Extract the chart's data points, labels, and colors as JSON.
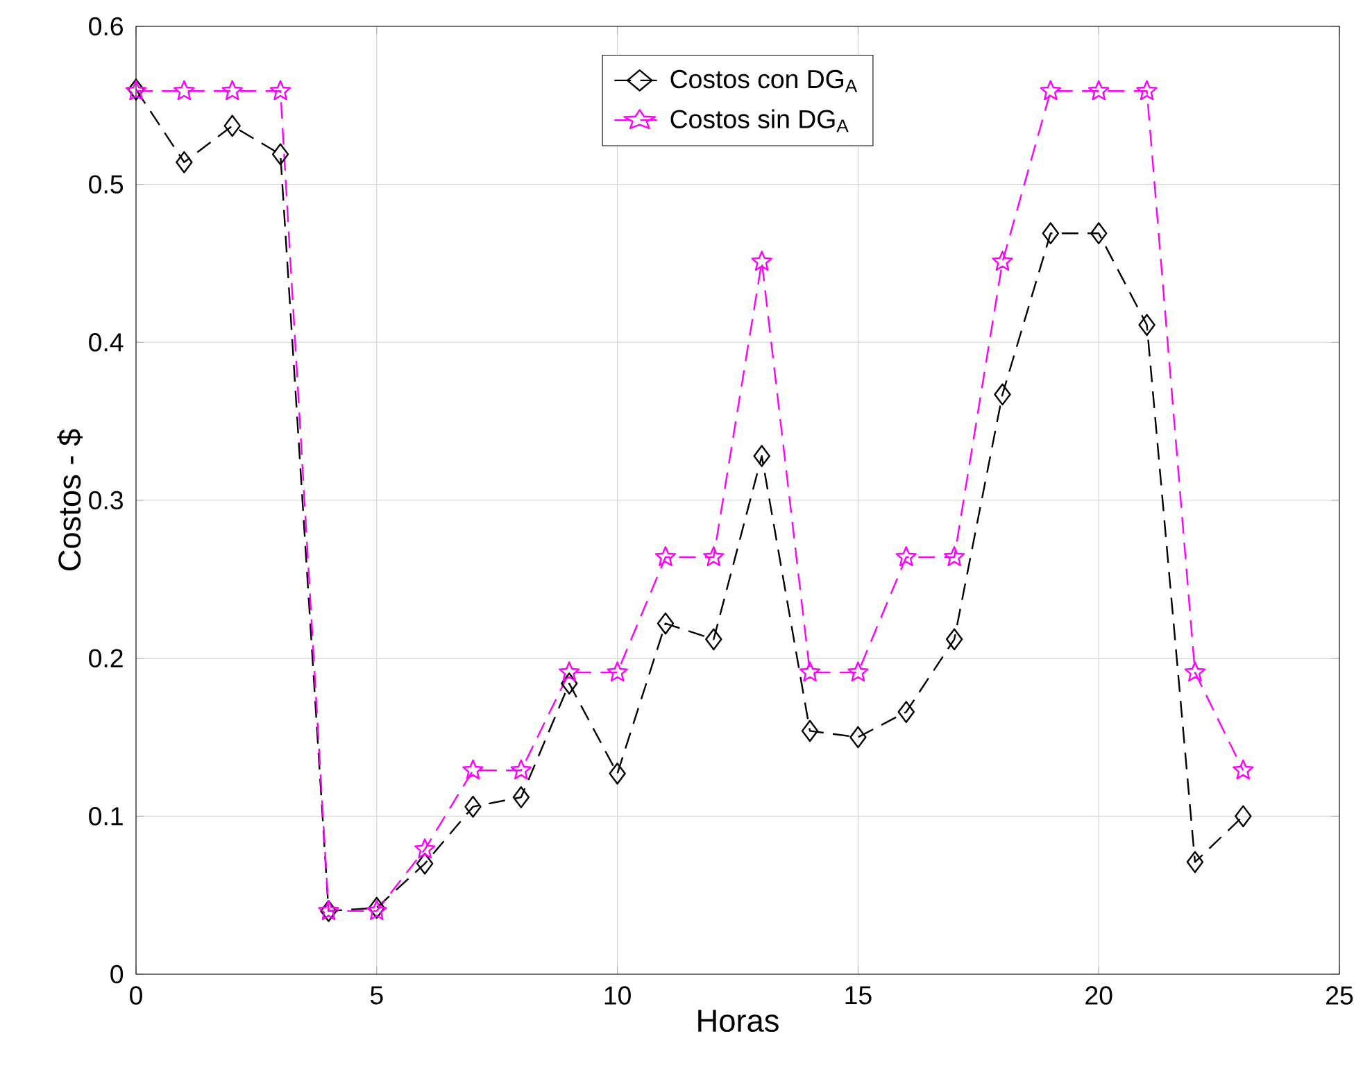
{
  "chart_data": {
    "type": "line",
    "xlabel": "Horas",
    "ylabel": "Costos - $",
    "x": [
      0,
      1,
      2,
      3,
      4,
      5,
      6,
      7,
      8,
      9,
      10,
      11,
      12,
      13,
      14,
      15,
      16,
      17,
      18,
      19,
      20,
      21,
      22,
      23
    ],
    "series": [
      {
        "name": "Costos con DG$_{A}$",
        "color": "#000000",
        "marker": "diamond",
        "line_style": "dashed",
        "values": [
          0.56,
          0.514,
          0.537,
          0.519,
          0.04,
          0.042,
          0.07,
          0.106,
          0.112,
          0.184,
          0.127,
          0.222,
          0.212,
          0.328,
          0.154,
          0.15,
          0.166,
          0.212,
          0.367,
          0.469,
          0.469,
          0.411,
          0.071,
          0.1
        ]
      },
      {
        "name": "Costos sin DG$_{A}$",
        "color": "#ff00ff",
        "marker": "star",
        "line_style": "dashed",
        "values": [
          0.559,
          0.559,
          0.559,
          0.559,
          0.04,
          0.04,
          0.079,
          0.129,
          0.129,
          0.191,
          0.191,
          0.264,
          0.264,
          0.451,
          0.191,
          0.191,
          0.264,
          0.264,
          0.451,
          0.559,
          0.559,
          0.559,
          0.191,
          0.129
        ]
      }
    ],
    "xlim": [
      0,
      25
    ],
    "xticks": [
      0,
      5,
      10,
      15,
      20,
      25
    ],
    "ylim": [
      0,
      0.6
    ],
    "yticks": [
      0,
      0.1,
      0.2,
      0.3,
      0.4,
      0.5,
      0.6
    ],
    "grid": true,
    "legend": "top"
  }
}
